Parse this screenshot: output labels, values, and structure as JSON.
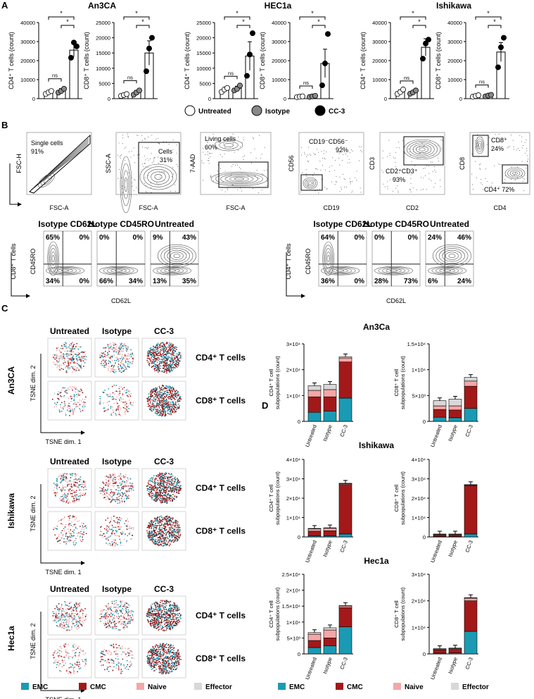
{
  "figure": {
    "panel_labels": [
      "A",
      "B",
      "C",
      "D"
    ],
    "panel_a": {
      "titles": [
        "An3CA",
        "HEC1a",
        "Ishikawa"
      ],
      "legend": [
        "Untreated",
        "Isotype",
        "CC-3"
      ],
      "sig_star": "*",
      "sig_ns": "ns",
      "y_labels": [
        "CD4⁺ T cells (count)",
        "CD8⁺ T cells (count)"
      ]
    },
    "panel_b": {
      "gates": [
        {
          "y": "FSC-H",
          "x": "FSC-A",
          "gate": "Single cells",
          "pct": "91%"
        },
        {
          "y": "SSC-A",
          "x": "FSC-A",
          "gate": "Cells",
          "pct": "31%"
        },
        {
          "y": "7-AAD",
          "x": "FSC-A",
          "gate": "Living cells",
          "pct": "60%"
        },
        {
          "y": "CD56",
          "x": "CD19",
          "gate": "CD19⁻CD56⁻",
          "pct": "92%"
        },
        {
          "y": "CD3",
          "x": "CD2",
          "gate": "CD2⁺CD3⁺",
          "pct": "93%"
        },
        {
          "y": "CD8",
          "x": "CD4",
          "gate": "CD8⁺",
          "pct": "24%",
          "gate2": "CD4⁺",
          "pct2": "72%"
        }
      ],
      "quad_titles": [
        "Isotype CD62L",
        "Isotype CD45RO",
        "Untreated"
      ],
      "cd8_ylabel": "CD8⁺ T cells",
      "cd4_ylabel": "CD4⁺ T cells",
      "quad_y": "CD45RO",
      "quad_x": "CD62L",
      "cd8_quads": [
        [
          "65%",
          "0%",
          "34%",
          "0%"
        ],
        [
          "0%",
          "0%",
          "66%",
          "34%"
        ],
        [
          "9%",
          "43%",
          "13%",
          "35%"
        ]
      ],
      "cd4_quads": [
        [
          "64%",
          "0%",
          "36%",
          "0%"
        ],
        [
          "0%",
          "0%",
          "28%",
          "73%"
        ],
        [
          "24%",
          "46%",
          "6%",
          "24%"
        ]
      ]
    },
    "panel_c": {
      "col_titles": [
        "Untreated",
        "Isotype",
        "CC-3"
      ],
      "row_labels": [
        "CD4⁺ T cells",
        "CD8⁺ T cells"
      ],
      "lines": [
        "An3CA",
        "Ishikawa",
        "Hec1a"
      ],
      "tsne_x": "TSNE dim. 1",
      "tsne_y": "TSNE dim. 2"
    },
    "panel_d": {
      "titles": [
        "An3Ca",
        "Ishikawa",
        "Hec1a"
      ],
      "ylabel_cd4": [
        "CD4⁺ T cell",
        "subpopulations (count)"
      ],
      "ylabel_cd8": [
        "CD8⁺ T cell",
        "subpopulations (count)"
      ],
      "categories": [
        "Untreated",
        "Isotype",
        "CC-3"
      ]
    },
    "legend_subsets": [
      {
        "label": "EMC",
        "color": "#1a9bb3"
      },
      {
        "label": "CMC",
        "color": "#a31919"
      },
      {
        "label": "Naive",
        "color": "#f4a7a7"
      },
      {
        "label": "Effector",
        "color": "#d8d8d8"
      }
    ]
  },
  "chart_data": [
    {
      "type": "bar",
      "title": "An3CA",
      "ylabel": "CD4⁺ T cells (count)",
      "categories": [
        "Untreated",
        "Isotype",
        "CC-3"
      ],
      "values": [
        3300,
        4200,
        25500
      ],
      "errors": [
        600,
        1100,
        3500
      ],
      "points": [
        [
          2500,
          3300,
          4000
        ],
        [
          3200,
          4000,
          5200
        ],
        [
          21500,
          29500,
          27500
        ]
      ],
      "ylim": [
        0,
        40000
      ],
      "yticks": [
        "0",
        "10000",
        "20000",
        "30000",
        "40000"
      ]
    },
    {
      "type": "bar",
      "title": "",
      "ylabel": "CD8⁺ T cells (count)",
      "categories": [
        "Untreated",
        "Isotype",
        "CC-3"
      ],
      "values": [
        1200,
        2000,
        15000
      ],
      "errors": [
        300,
        700,
        4000
      ],
      "points": [
        [
          900,
          1200,
          1500
        ],
        [
          1300,
          2000,
          2700
        ],
        [
          9000,
          16500,
          20000
        ]
      ],
      "ylim": [
        0,
        25000
      ],
      "yticks": [
        "0",
        "5000",
        "10000",
        "15000",
        "20000",
        "25000"
      ]
    },
    {
      "type": "bar",
      "title": "HEC1a",
      "ylabel": "CD4⁺ T cells (count)",
      "categories": [
        "Untreated",
        "Isotype",
        "CC-3"
      ],
      "values": [
        2900,
        3400,
        14000
      ],
      "errors": [
        500,
        700,
        4700
      ],
      "points": [
        [
          2200,
          3000,
          3500
        ],
        [
          2700,
          3200,
          4300
        ],
        [
          7500,
          14500,
          21500
        ]
      ],
      "ylim": [
        0,
        25000
      ],
      "yticks": [
        "0",
        "5000",
        "10000",
        "15000",
        "20000",
        "25000"
      ]
    },
    {
      "type": "bar",
      "title": "",
      "ylabel": "CD8⁺ T cells (count)",
      "categories": [
        "Untreated",
        "Isotype",
        "CC-3"
      ],
      "values": [
        1000,
        1200,
        18500
      ],
      "errors": [
        200,
        300,
        7500
      ],
      "points": [
        [
          800,
          1000,
          1200
        ],
        [
          900,
          1200,
          1500
        ],
        [
          7000,
          18500,
          34000
        ]
      ],
      "ylim": [
        0,
        40000
      ],
      "yticks": [
        "0",
        "10000",
        "20000",
        "30000",
        "40000"
      ]
    },
    {
      "type": "bar",
      "title": "Ishikawa",
      "ylabel": "CD4⁺ T cells (count)",
      "categories": [
        "Untreated",
        "Isotype",
        "CC-3"
      ],
      "values": [
        3600,
        3400,
        27000
      ],
      "errors": [
        1000,
        700,
        4500
      ],
      "points": [
        [
          2500,
          3500,
          4800
        ],
        [
          2600,
          3300,
          4300
        ],
        [
          21000,
          29000,
          31000
        ]
      ],
      "ylim": [
        0,
        40000
      ],
      "yticks": [
        "0",
        "10000",
        "20000",
        "30000",
        "40000"
      ]
    },
    {
      "type": "bar",
      "title": "",
      "ylabel": "CD8⁺ T cells (count)",
      "categories": [
        "Untreated",
        "Isotype",
        "CC-3"
      ],
      "values": [
        1400,
        1600,
        24500
      ],
      "errors": [
        300,
        400,
        5000
      ],
      "points": [
        [
          1000,
          1400,
          1800
        ],
        [
          1200,
          1600,
          2000
        ],
        [
          16500,
          27000,
          32000
        ]
      ],
      "ylim": [
        0,
        40000
      ],
      "yticks": [
        "0",
        "10000",
        "20000",
        "30000",
        "40000"
      ]
    },
    {
      "type": "stacked-bar",
      "title": "An3Ca",
      "ylabel": "CD4⁺ T cell subpopulations (count)",
      "categories": [
        "Untreated",
        "Isotype",
        "CC-3"
      ],
      "series": [
        {
          "name": "EMC",
          "values": [
            3500,
            4000,
            9000
          ]
        },
        {
          "name": "CMC",
          "values": [
            6000,
            5500,
            14000
          ]
        },
        {
          "name": "Naive",
          "values": [
            2500,
            2800,
            1500
          ]
        },
        {
          "name": "Effector",
          "values": [
            1800,
            2000,
            500
          ]
        }
      ],
      "ylim": [
        0,
        30000
      ],
      "yticks": [
        "0",
        "1×10⁴",
        "2×10⁴",
        "3×10⁴"
      ]
    },
    {
      "type": "stacked-bar",
      "title": "",
      "ylabel": "CD8⁺ T cell subpopulations (count)",
      "categories": [
        "Untreated",
        "Isotype",
        "CC-3"
      ],
      "series": [
        {
          "name": "EMC",
          "values": [
            800,
            700,
            2500
          ]
        },
        {
          "name": "CMC",
          "values": [
            1500,
            1500,
            4300
          ]
        },
        {
          "name": "Naive",
          "values": [
            700,
            800,
            1000
          ]
        },
        {
          "name": "Effector",
          "values": [
            1000,
            1300,
            700
          ]
        }
      ],
      "ylim": [
        0,
        15000
      ],
      "yticks": [
        "0",
        "5×10³",
        "1×10⁴",
        "1.5×10⁴"
      ]
    },
    {
      "type": "stacked-bar",
      "title": "Ishikawa",
      "ylabel": "CD4⁺ T cell subpopulations (count)",
      "categories": [
        "Untreated",
        "Isotype",
        "CC-3"
      ],
      "series": [
        {
          "name": "EMC",
          "values": [
            500,
            500,
            1500
          ]
        },
        {
          "name": "CMC",
          "values": [
            2500,
            2700,
            25500
          ]
        },
        {
          "name": "Naive",
          "values": [
            1200,
            1300,
            500
          ]
        },
        {
          "name": "Effector",
          "values": [
            200,
            200,
            200
          ]
        }
      ],
      "ylim": [
        0,
        40000
      ],
      "yticks": [
        "0",
        "1×10⁴",
        "2×10⁴",
        "3×10⁴",
        "4×10⁴"
      ]
    },
    {
      "type": "stacked-bar",
      "title": "",
      "ylabel": "CD8⁺ T cell subpopulations (count)",
      "categories": [
        "Untreated",
        "Isotype",
        "CC-3"
      ],
      "series": [
        {
          "name": "EMC",
          "values": [
            200,
            200,
            1500
          ]
        },
        {
          "name": "CMC",
          "values": [
            900,
            900,
            25000
          ]
        },
        {
          "name": "Naive",
          "values": [
            300,
            300,
            300
          ]
        },
        {
          "name": "Effector",
          "values": [
            100,
            100,
            200
          ]
        }
      ],
      "ylim": [
        0,
        40000
      ],
      "yticks": [
        "0",
        "1×10⁴",
        "2×10⁴",
        "3×10⁴",
        "4×10⁴"
      ]
    },
    {
      "type": "stacked-bar",
      "title": "Hec1a",
      "ylabel": "CD4⁺ T cell subpopulations (count)",
      "categories": [
        "Untreated",
        "Isotype",
        "CC-3"
      ],
      "series": [
        {
          "name": "EMC",
          "values": [
            2000,
            2500,
            8500
          ]
        },
        {
          "name": "CMC",
          "values": [
            2200,
            2500,
            6000
          ]
        },
        {
          "name": "Naive",
          "values": [
            2000,
            2500,
            500
          ]
        },
        {
          "name": "Effector",
          "values": [
            500,
            700,
            200
          ]
        }
      ],
      "ylim": [
        0,
        25000
      ],
      "yticks": [
        "0",
        "5×10³",
        "1×10⁴",
        "1.5×10⁴",
        "2×10⁴",
        "2.5×10⁴"
      ]
    },
    {
      "type": "stacked-bar",
      "title": "",
      "ylabel": "CD8⁺ T cell subpopulations (count)",
      "categories": [
        "Untreated",
        "Isotype",
        "CC-3"
      ],
      "series": [
        {
          "name": "EMC",
          "values": [
            300,
            400,
            8500
          ]
        },
        {
          "name": "CMC",
          "values": [
            1200,
            1300,
            11500
          ]
        },
        {
          "name": "Naive",
          "values": [
            300,
            300,
            1000
          ]
        },
        {
          "name": "Effector",
          "values": [
            200,
            200,
            200
          ]
        }
      ],
      "ylim": [
        0,
        30000
      ],
      "yticks": [
        "0",
        "1×10⁴",
        "2×10⁴",
        "3×10⁴"
      ]
    }
  ]
}
